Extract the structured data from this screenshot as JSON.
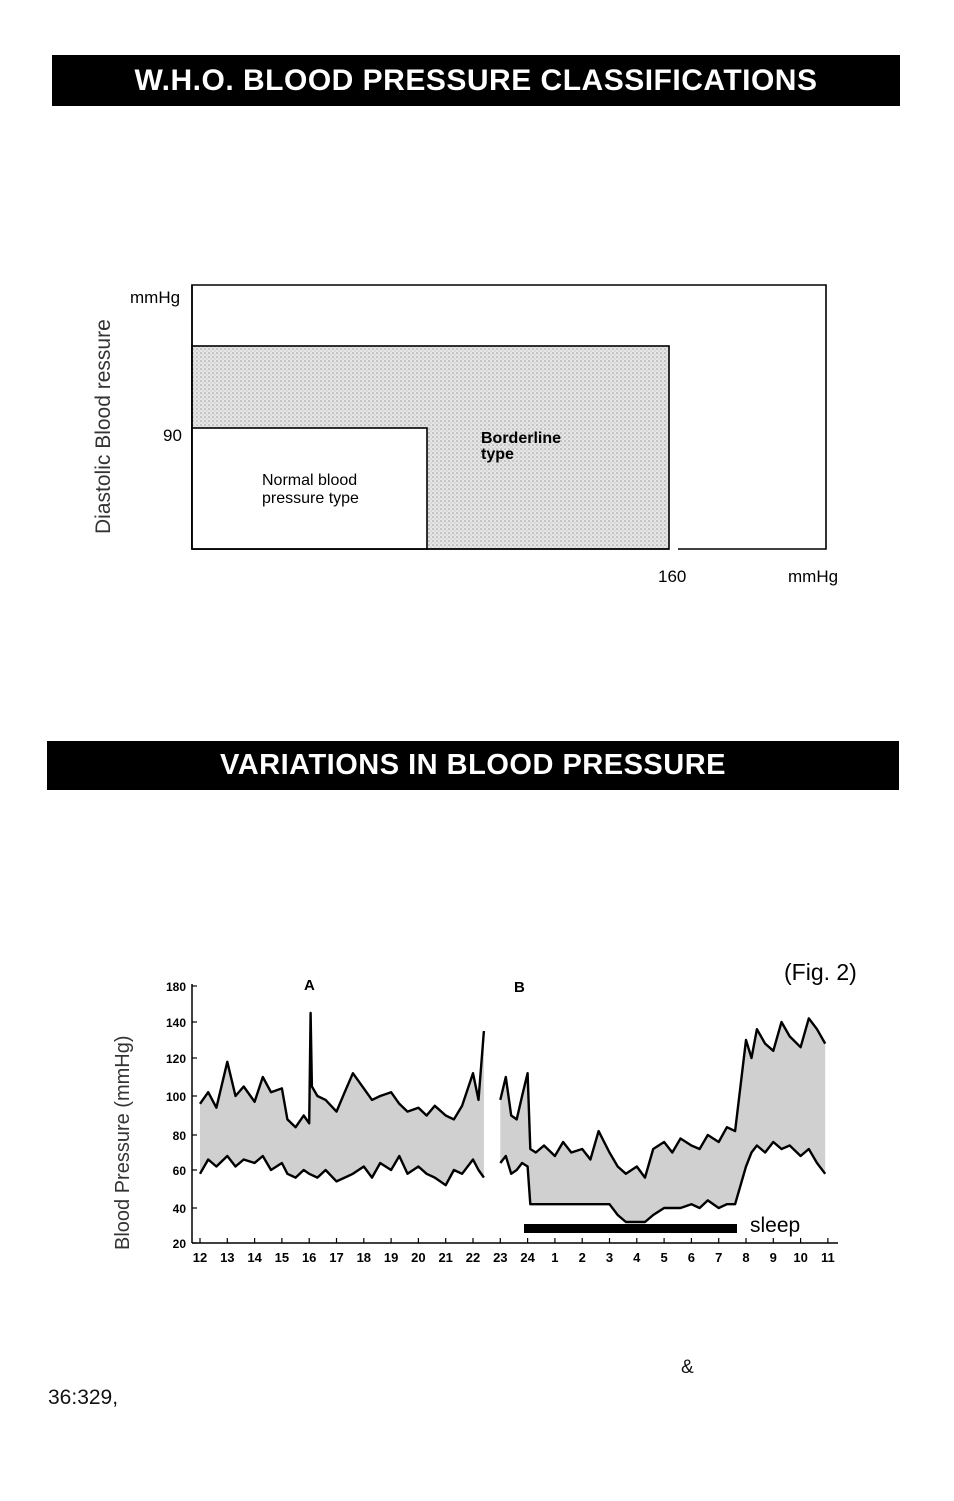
{
  "section1": {
    "title": "W.H.O. BLOOD PRESSURE CLASSIFICATIONS",
    "y_axis_label": "Diastolic Blood  ressure",
    "y_unit": "mmHg",
    "y_tick": "90",
    "x_tick": "160",
    "x_unit": "mmHg",
    "normal_label_line1": "Normal blood",
    "normal_label_line2": "pressure type",
    "borderline_label_line1": "Borderline",
    "borderline_label_line2": "type"
  },
  "section2": {
    "title": "VARIATIONS IN BLOOD PRESSURE",
    "fig_label": "(Fig. 2)",
    "y_axis_label": "Blood Pressure (mmHg)",
    "marker_a": "A",
    "marker_b": "B",
    "sleep_label": "sleep"
  },
  "chart_data": {
    "type": "area",
    "ylabel": "Blood Pressure (mmHg)",
    "ylim": [
      20,
      180
    ],
    "yticks": [
      "180",
      "140",
      "120",
      "100",
      "80",
      "60",
      "40",
      "20"
    ],
    "xticks": [
      "12",
      "13",
      "14",
      "15",
      "16",
      "17",
      "18",
      "19",
      "20",
      "21",
      "22",
      "23",
      "24",
      "1",
      "2",
      "3",
      "4",
      "5",
      "6",
      "7",
      "8",
      "9",
      "10",
      "11"
    ],
    "annotations": [
      "A",
      "B",
      "sleep"
    ],
    "series": [
      {
        "x": [
          12.0,
          12.3,
          12.6,
          13.0,
          13.3,
          13.6,
          14.0,
          14.3,
          14.6,
          15.0,
          15.2,
          15.5,
          15.8,
          16.0,
          16.05,
          16.1,
          16.3,
          16.6,
          17.0,
          17.3,
          17.6,
          18.0,
          18.3,
          18.6,
          19.0,
          19.3,
          19.6,
          20.0,
          20.3,
          20.6,
          21.0,
          21.3,
          21.6,
          22.0,
          22.2,
          22.4
        ],
        "values": [
          96,
          102,
          94,
          118,
          100,
          105,
          97,
          110,
          102,
          104,
          88,
          84,
          90,
          86,
          150,
          105,
          100,
          98,
          92,
          102,
          112,
          104,
          98,
          100,
          102,
          96,
          92,
          94,
          90,
          95,
          90,
          88,
          95,
          112,
          98,
          135
        ]
      },
      {
        "x": [
          12.0,
          12.3,
          12.6,
          13.0,
          13.3,
          13.6,
          14.0,
          14.3,
          14.6,
          15.0,
          15.2,
          15.5,
          15.8,
          16.0,
          16.3,
          16.6,
          17.0,
          17.3,
          17.6,
          18.0,
          18.3,
          18.6,
          19.0,
          19.3,
          19.6,
          20.0,
          20.3,
          20.6,
          21.0,
          21.3,
          21.6,
          22.0,
          22.2,
          22.4
        ],
        "values": [
          58,
          66,
          62,
          68,
          62,
          66,
          64,
          68,
          60,
          64,
          58,
          56,
          60,
          58,
          56,
          60,
          54,
          56,
          58,
          62,
          56,
          64,
          60,
          68,
          58,
          62,
          58,
          56,
          52,
          60,
          58,
          66,
          60,
          56
        ]
      },
      {
        "x": [
          23.0,
          23.2,
          23.4,
          23.6,
          23.8,
          24.0,
          24.1,
          24.3,
          24.6,
          25.0,
          25.3,
          25.6,
          26.0,
          26.3,
          26.6,
          27.0,
          27.3,
          27.6,
          28.0,
          28.3,
          28.6,
          29.0,
          29.3,
          29.6,
          30.0,
          30.3,
          30.6,
          31.0,
          31.3,
          31.6,
          32.0,
          32.2,
          32.4,
          32.7,
          33.0,
          33.3,
          33.6,
          34.0,
          34.3,
          34.6,
          34.9
        ],
        "values": [
          98,
          110,
          90,
          88,
          100,
          112,
          72,
          70,
          74,
          68,
          76,
          70,
          72,
          66,
          82,
          70,
          62,
          58,
          62,
          56,
          72,
          76,
          70,
          78,
          74,
          72,
          80,
          76,
          84,
          82,
          130,
          120,
          136,
          128,
          124,
          140,
          132,
          126,
          144,
          136,
          128
        ]
      },
      {
        "x": [
          23.0,
          23.2,
          23.4,
          23.6,
          23.8,
          24.0,
          24.1,
          24.3,
          24.6,
          25.0,
          25.3,
          25.6,
          26.0,
          26.3,
          26.6,
          27.0,
          27.3,
          27.6,
          28.0,
          28.3,
          28.6,
          29.0,
          29.3,
          29.6,
          30.0,
          30.3,
          30.6,
          31.0,
          31.3,
          31.6,
          32.0,
          32.2,
          32.4,
          32.7,
          33.0,
          33.3,
          33.6,
          34.0,
          34.3,
          34.6,
          34.9
        ],
        "values": [
          64,
          68,
          58,
          60,
          64,
          62,
          42,
          42,
          42,
          42,
          42,
          42,
          42,
          42,
          42,
          42,
          36,
          32,
          32,
          32,
          36,
          40,
          40,
          40,
          42,
          40,
          44,
          40,
          42,
          42,
          62,
          70,
          74,
          70,
          76,
          72,
          74,
          68,
          72,
          64,
          58
        ]
      }
    ]
  }
}
